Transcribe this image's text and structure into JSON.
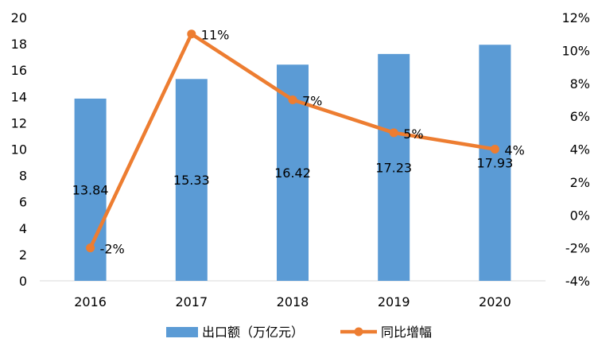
{
  "chart_data": {
    "type": "bar",
    "categories": [
      "2016",
      "2017",
      "2018",
      "2019",
      "2020"
    ],
    "series": [
      {
        "name": "出口额（万亿元）",
        "type": "bar",
        "axis": "left",
        "color": "#5B9BD5",
        "values": [
          13.84,
          15.33,
          16.42,
          17.23,
          17.93
        ],
        "labels": [
          "13.84",
          "15.33",
          "16.42",
          "17.23",
          "17.93"
        ]
      },
      {
        "name": "同比增幅",
        "type": "line",
        "axis": "right",
        "color": "#ED7D31",
        "values": [
          -2,
          11,
          7,
          5,
          4
        ],
        "labels": [
          "-2%",
          "11%",
          "7%",
          "5%",
          "4%"
        ]
      }
    ],
    "y_left": {
      "min": 0,
      "max": 20,
      "ticks": [
        "0",
        "2",
        "4",
        "6",
        "8",
        "10",
        "12",
        "14",
        "16",
        "18",
        "20"
      ]
    },
    "y_right": {
      "min": -4,
      "max": 12,
      "ticks": [
        "-4%",
        "-2%",
        "0%",
        "2%",
        "4%",
        "6%",
        "8%",
        "10%",
        "12%"
      ]
    },
    "grid": false,
    "legend": "bottom-center"
  }
}
